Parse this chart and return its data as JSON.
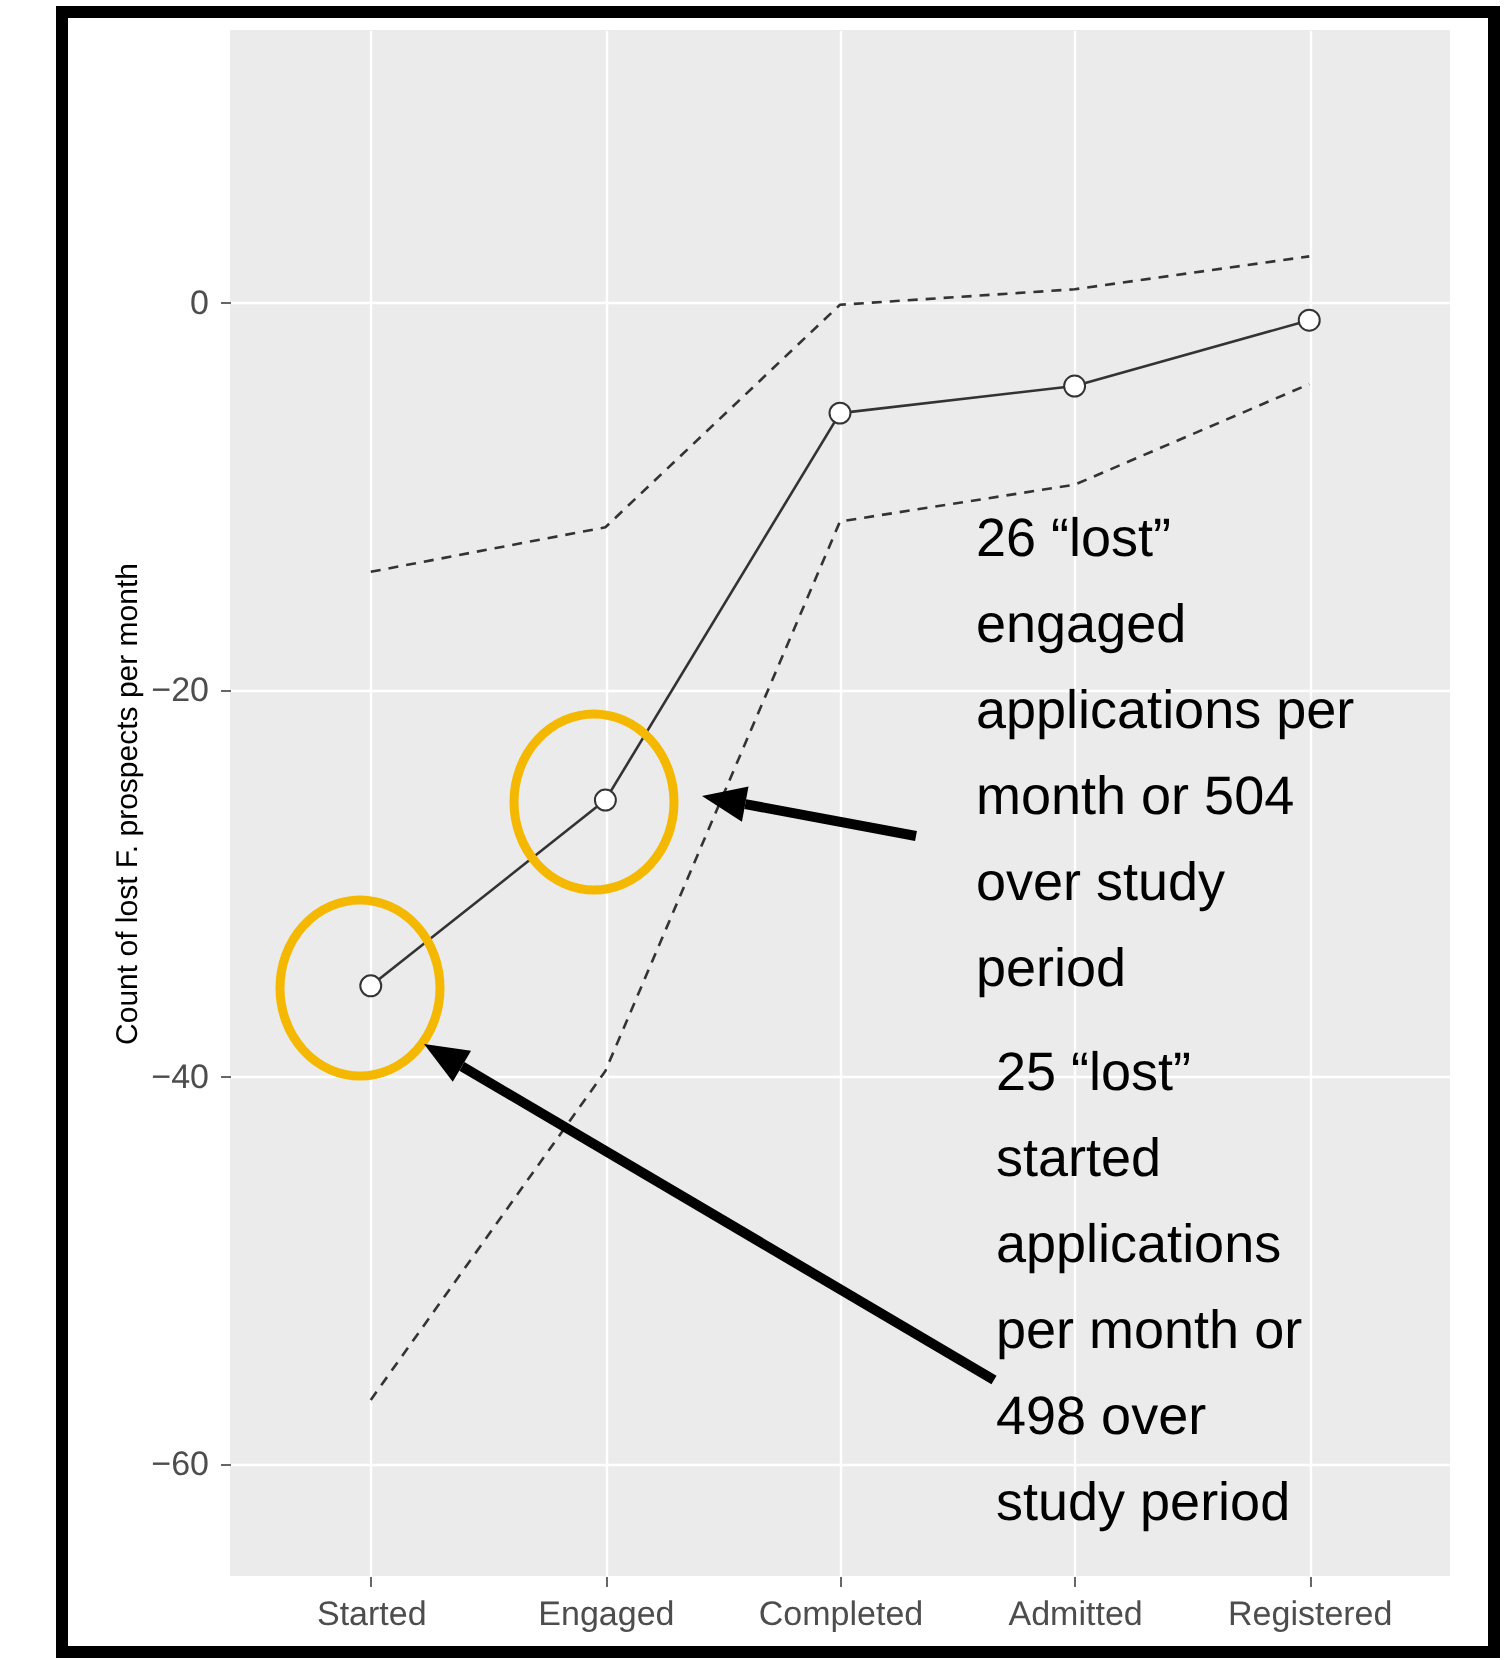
{
  "chart_data": {
    "type": "line",
    "ylabel": "Count of lost F. prospects per month",
    "categories": [
      "Started",
      "Engaged",
      "Completed",
      "Admitted",
      "Registered"
    ],
    "series": [
      {
        "color": "#333333",
        "marker": "circle",
        "line_style": "solid",
        "values": [
          -35.3,
          -25.7,
          -5.7,
          -4.3,
          -0.9
        ]
      },
      {
        "color": "#333333",
        "marker": "none",
        "line_style": "dashed",
        "values": [
          -13.9,
          -11.6,
          -0.1,
          0.7,
          2.4
        ]
      },
      {
        "color": "#333333",
        "marker": "none",
        "line_style": "dashed",
        "values": [
          -56.7,
          -39.7,
          -11.3,
          -9.4,
          -4.2
        ]
      }
    ],
    "ylim": [
      -65.8,
      14.1
    ],
    "yticks": [
      -60,
      -40,
      -20,
      0
    ],
    "grid": true,
    "annotations": [
      "26 “lost” engaged applications per month or 504 over study period",
      "25 “lost” started applications per month or 498 over study period"
    ]
  }
}
